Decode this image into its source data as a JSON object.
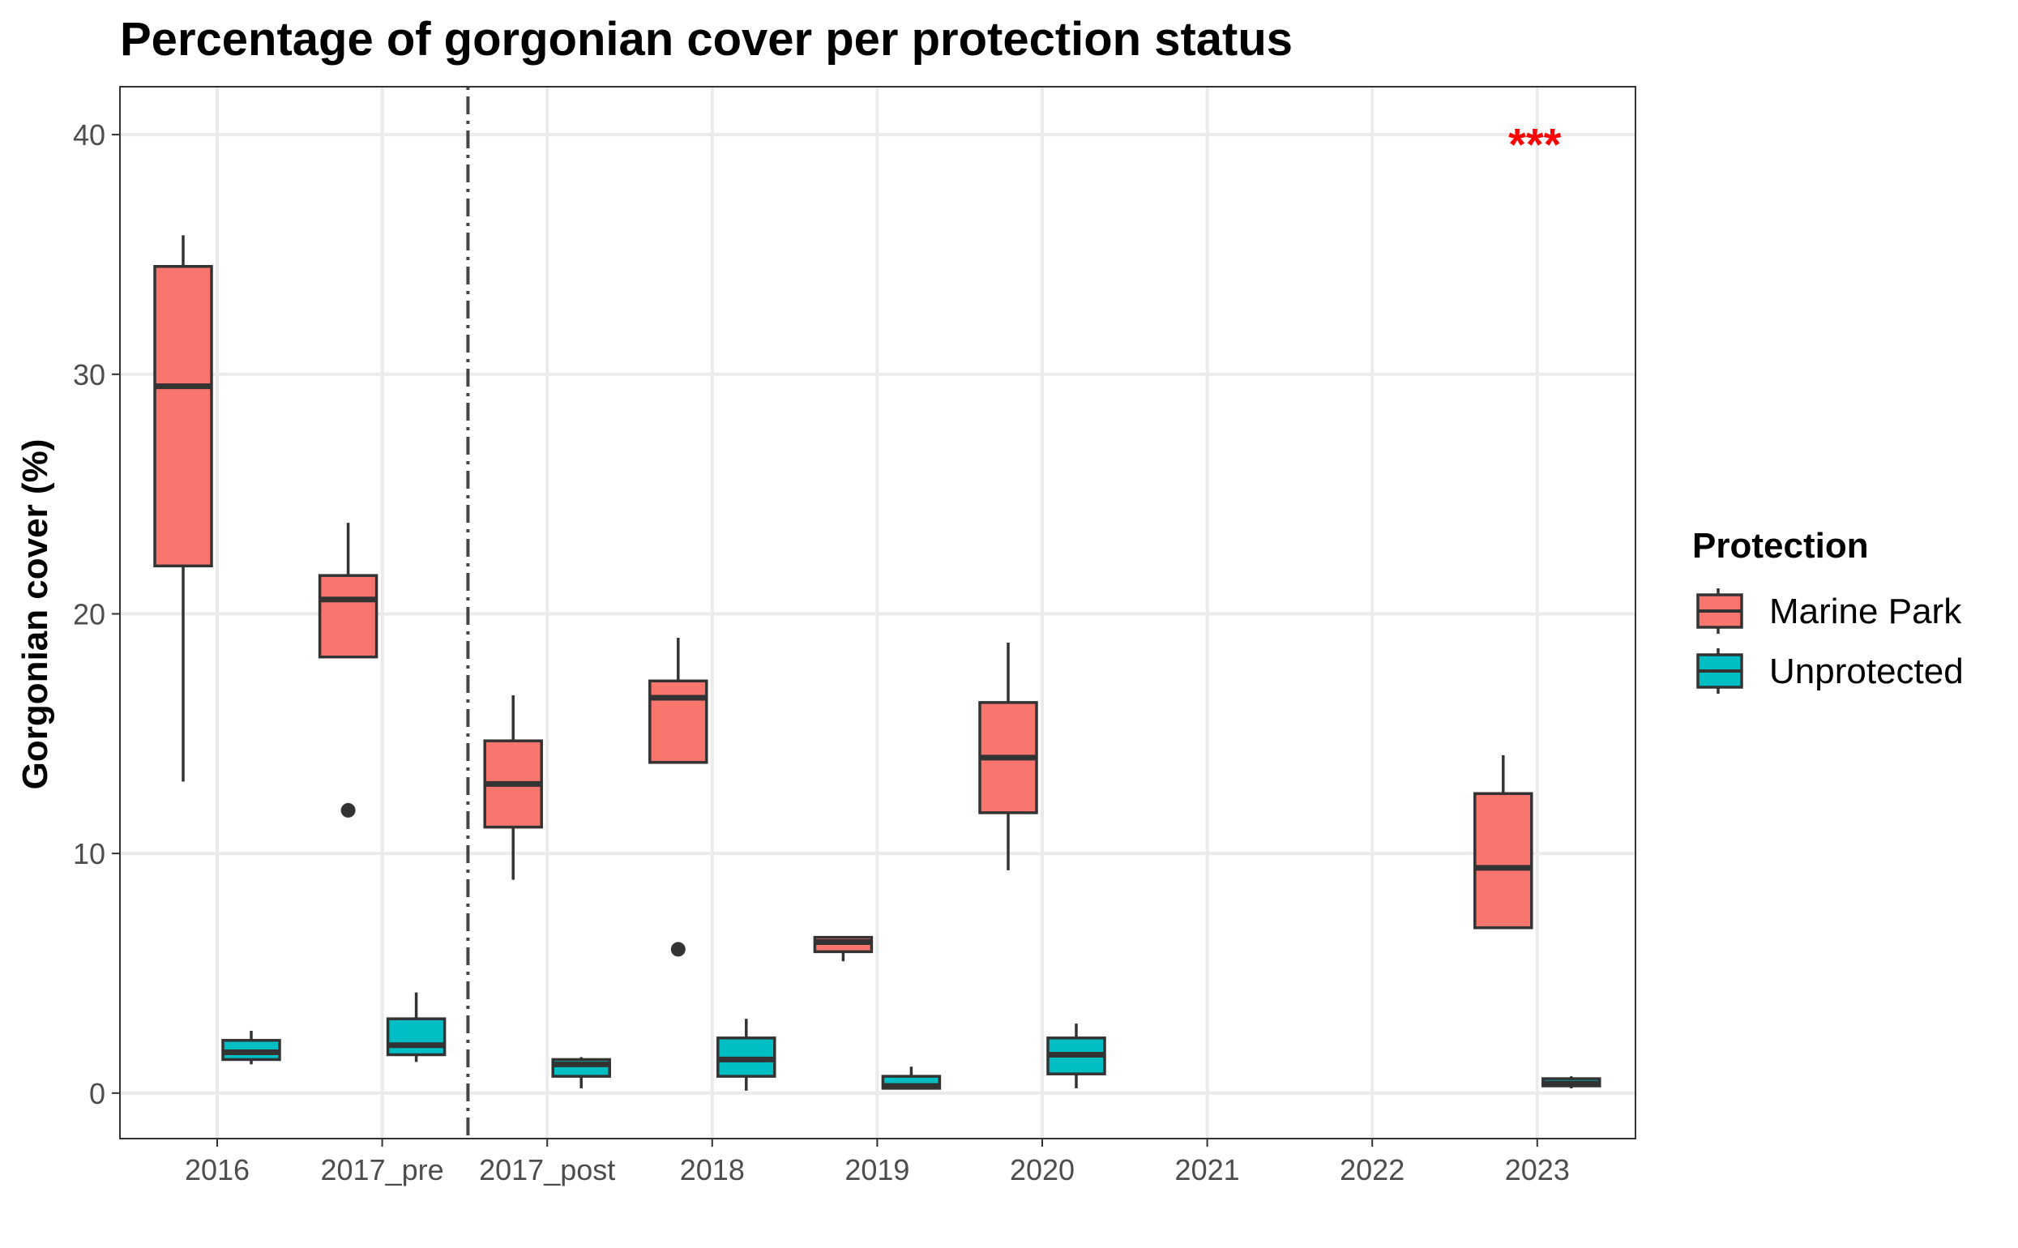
{
  "chart_data": {
    "type": "box",
    "title": "Percentage of gorgonian cover per protection status",
    "xlabel": "",
    "ylabel": "Gorgonian cover (%)",
    "ylim": [
      -1.9,
      42
    ],
    "yticks": [
      0,
      10,
      20,
      30,
      40
    ],
    "categories": [
      "2016",
      "2017_pre",
      "2017_post",
      "2018",
      "2019",
      "2020",
      "2021",
      "2022",
      "2023"
    ],
    "grid": true,
    "legend": {
      "title": "Protection",
      "position": "right"
    },
    "separator_after_category": "2017_pre",
    "annotation": {
      "text": "***",
      "category": "2023",
      "y": 40.3,
      "color": "#ff0000"
    },
    "series": [
      {
        "name": "Marine Park",
        "color": "#f8766d",
        "boxes": [
          {
            "category": "2016",
            "lower_whisker": 13.0,
            "q1": 22.0,
            "median": 29.5,
            "q3": 34.5,
            "upper_whisker": 35.8,
            "outliers": []
          },
          {
            "category": "2017_pre",
            "lower_whisker": 18.2,
            "q1": 18.2,
            "median": 20.6,
            "q3": 21.6,
            "upper_whisker": 23.8,
            "outliers": [
              11.8
            ]
          },
          {
            "category": "2017_post",
            "lower_whisker": 8.9,
            "q1": 11.1,
            "median": 12.9,
            "q3": 14.7,
            "upper_whisker": 16.6,
            "outliers": []
          },
          {
            "category": "2018",
            "lower_whisker": 13.8,
            "q1": 13.8,
            "median": 16.5,
            "q3": 17.2,
            "upper_whisker": 19.0,
            "outliers": [
              6.0
            ]
          },
          {
            "category": "2019",
            "lower_whisker": 5.5,
            "q1": 5.9,
            "median": 6.3,
            "q3": 6.5,
            "upper_whisker": 6.5,
            "outliers": []
          },
          {
            "category": "2020",
            "lower_whisker": 9.3,
            "q1": 11.7,
            "median": 14.0,
            "q3": 16.3,
            "upper_whisker": 18.8,
            "outliers": []
          },
          {
            "category": "2023",
            "lower_whisker": 6.9,
            "q1": 6.9,
            "median": 9.4,
            "q3": 12.5,
            "upper_whisker": 14.1,
            "outliers": []
          }
        ]
      },
      {
        "name": "Unprotected",
        "color": "#00bfc4",
        "boxes": [
          {
            "category": "2016",
            "lower_whisker": 1.2,
            "q1": 1.4,
            "median": 1.7,
            "q3": 2.2,
            "upper_whisker": 2.6,
            "outliers": []
          },
          {
            "category": "2017_pre",
            "lower_whisker": 1.3,
            "q1": 1.6,
            "median": 2.0,
            "q3": 3.1,
            "upper_whisker": 4.2,
            "outliers": []
          },
          {
            "category": "2017_post",
            "lower_whisker": 0.2,
            "q1": 0.7,
            "median": 1.2,
            "q3": 1.4,
            "upper_whisker": 1.5,
            "outliers": []
          },
          {
            "category": "2018",
            "lower_whisker": 0.1,
            "q1": 0.7,
            "median": 1.4,
            "q3": 2.3,
            "upper_whisker": 3.1,
            "outliers": []
          },
          {
            "category": "2019",
            "lower_whisker": 0.2,
            "q1": 0.2,
            "median": 0.3,
            "q3": 0.7,
            "upper_whisker": 1.1,
            "outliers": []
          },
          {
            "category": "2020",
            "lower_whisker": 0.2,
            "q1": 0.8,
            "median": 1.6,
            "q3": 2.3,
            "upper_whisker": 2.9,
            "outliers": []
          },
          {
            "category": "2023",
            "lower_whisker": 0.2,
            "q1": 0.3,
            "median": 0.4,
            "q3": 0.6,
            "upper_whisker": 0.7,
            "outliers": []
          }
        ]
      }
    ]
  }
}
